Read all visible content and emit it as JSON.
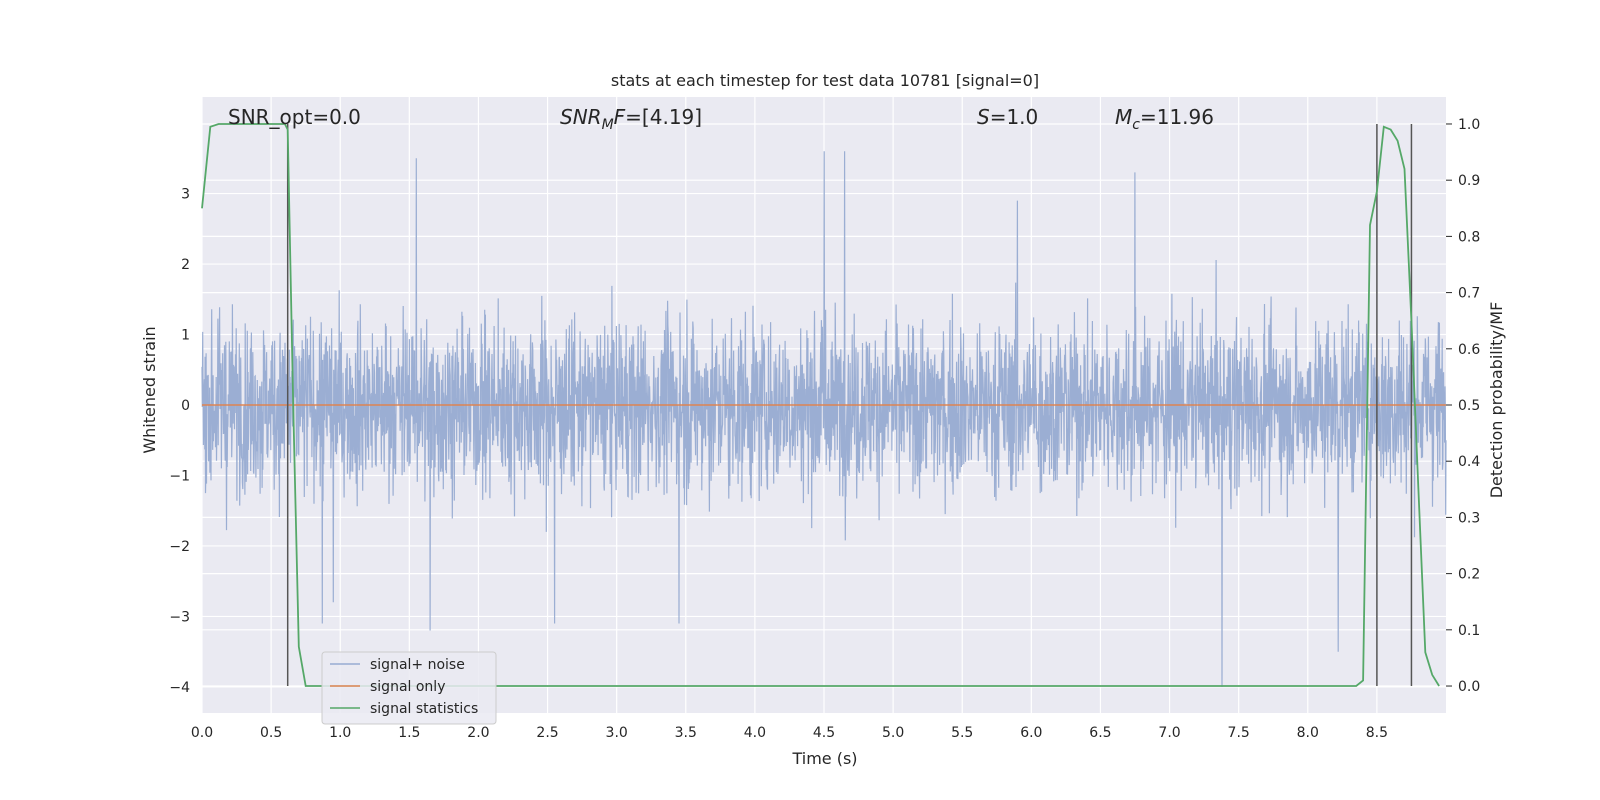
{
  "chart_data": {
    "type": "line",
    "title": "stats at each timestep for test data 10781 [signal=0]",
    "xlabel": "Time (s)",
    "ylabel": "Whitened strain",
    "y2label": "Detection probability/MF",
    "xlim": [
      0.0,
      9.0
    ],
    "ylim": [
      -4.37,
      4.37
    ],
    "y2lim": [
      -0.048,
      1.048
    ],
    "x_ticks": [
      0.0,
      0.5,
      1.0,
      1.5,
      2.0,
      2.5,
      3.0,
      3.5,
      4.0,
      4.5,
      5.0,
      5.5,
      6.0,
      6.5,
      7.0,
      7.5,
      8.0,
      8.5
    ],
    "x_tick_labels": [
      "0.0",
      "0.5",
      "1.0",
      "1.5",
      "2.0",
      "2.5",
      "3.0",
      "3.5",
      "4.0",
      "4.5",
      "5.0",
      "5.5",
      "6.0",
      "6.5",
      "7.0",
      "7.5",
      "8.0",
      "8.5"
    ],
    "y_ticks": [
      3,
      2,
      1,
      0,
      -1,
      -2,
      -3,
      -4
    ],
    "y_tick_labels": [
      "3",
      "2",
      "1",
      "0",
      "−1",
      "−2",
      "−3",
      "−4"
    ],
    "y2_ticks": [
      1.0,
      0.9,
      0.8,
      0.7,
      0.6,
      0.5,
      0.4,
      0.3,
      0.2,
      0.1,
      0.0
    ],
    "y2_tick_labels": [
      "1.0",
      "0.9",
      "0.8",
      "0.7",
      "0.6",
      "0.5",
      "0.4",
      "0.3",
      "0.2",
      "0.1",
      "0.0"
    ],
    "grid": true,
    "legend_position": "lower-left",
    "annotations": {
      "snr_opt": "SNR_opt=0.0",
      "snr_mf_sym": "SNR",
      "snr_mf_sub": "M",
      "snr_mf_rest_it": "F",
      "snr_mf_value": "=[4.19]",
      "s_sym": "S",
      "s_value": "=1.0",
      "mc_sym": "M",
      "mc_sub": "c",
      "mc_value": "=11.96"
    },
    "series": [
      {
        "name": "signal+ noise",
        "color": "#97abd1",
        "noise_band_p2": [
          -1.8,
          2.4
        ],
        "peak_values": [
          {
            "x": 1.55,
            "y": 3.5
          },
          {
            "x": 4.5,
            "y": 3.6
          },
          {
            "x": 4.65,
            "y": 3.6
          },
          {
            "x": 1.65,
            "y": -3.2
          },
          {
            "x": 3.45,
            "y": -3.1
          },
          {
            "x": 7.38,
            "y": -4.0
          },
          {
            "x": 8.22,
            "y": -3.5
          },
          {
            "x": 2.55,
            "y": -3.1
          },
          {
            "x": 0.87,
            "y": -3.1
          },
          {
            "x": 6.75,
            "y": 3.3
          },
          {
            "x": 5.9,
            "y": 2.9
          },
          {
            "x": 0.95,
            "y": -2.8
          }
        ]
      },
      {
        "name": "signal only",
        "color": "#dd8452",
        "value": 0.0
      },
      {
        "name": "signal statistics",
        "color": "#55a868",
        "axis": "right",
        "x": [
          0.0,
          0.06,
          0.12,
          0.2,
          0.3,
          0.4,
          0.5,
          0.55,
          0.6,
          0.62,
          0.66,
          0.7,
          0.75,
          0.8,
          8.2,
          8.35,
          8.4,
          8.45,
          8.5,
          8.55,
          8.6,
          8.65,
          8.7,
          8.75,
          8.8,
          8.85,
          8.9,
          8.95
        ],
        "y": [
          0.85,
          0.995,
          1.0,
          1.0,
          1.0,
          1.0,
          1.0,
          1.0,
          1.0,
          0.99,
          0.5,
          0.07,
          0.0,
          0.0,
          0.0,
          0.0,
          0.01,
          0.82,
          0.88,
          0.995,
          0.99,
          0.97,
          0.92,
          0.65,
          0.35,
          0.06,
          0.02,
          0.0
        ]
      }
    ],
    "vertical_markers": [
      0.62,
      8.5,
      8.75
    ]
  }
}
